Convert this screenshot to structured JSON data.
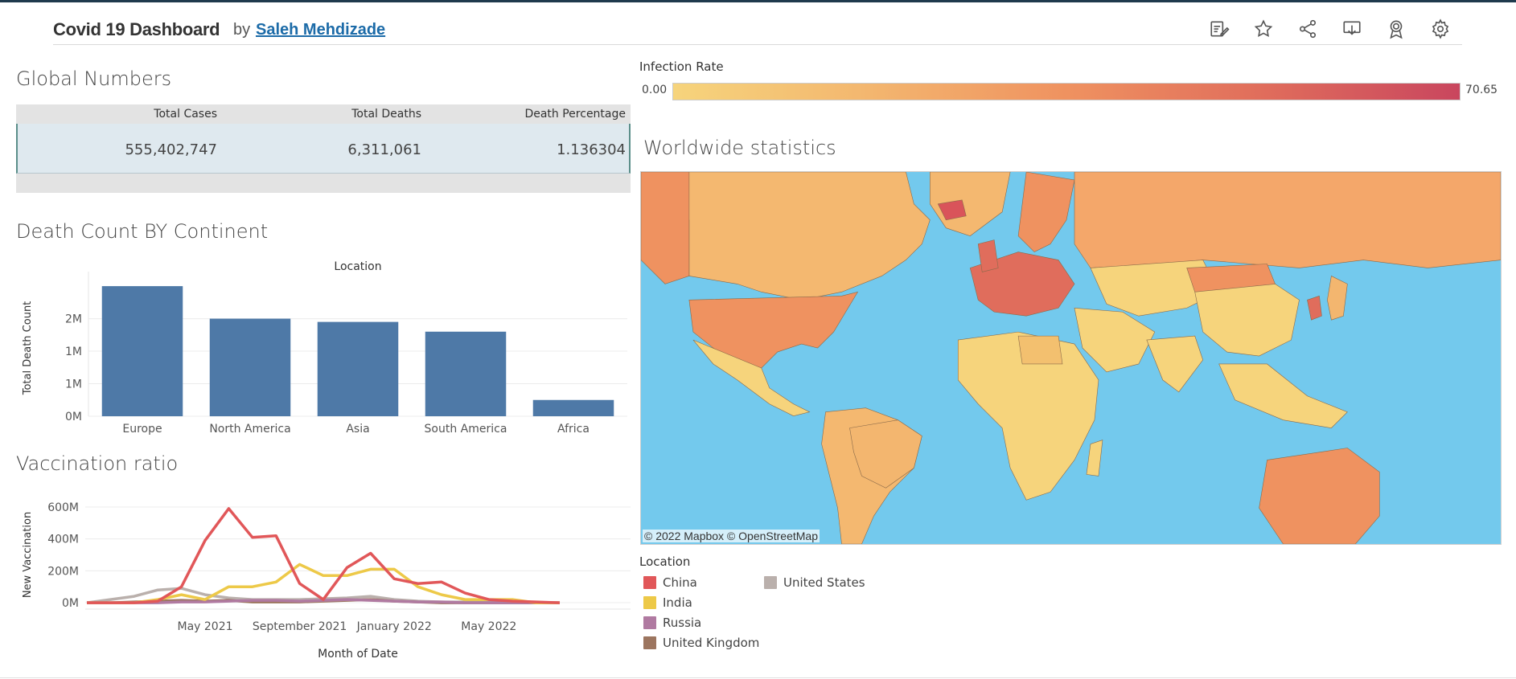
{
  "header": {
    "title": "Covid 19 Dashboard",
    "by": "by",
    "author": "Saleh Mehdizade",
    "toolbar": [
      {
        "icon": "edit-icon"
      },
      {
        "icon": "star-icon"
      },
      {
        "icon": "share-icon"
      },
      {
        "icon": "download-icon"
      },
      {
        "icon": "award-icon"
      },
      {
        "icon": "gear-icon"
      }
    ]
  },
  "global_numbers": {
    "title": "Global Numbers",
    "columns": [
      "Total Cases",
      "Total Deaths",
      "Death Percentage"
    ],
    "values": [
      "555,402,747",
      "6,311,061",
      "1.136304"
    ]
  },
  "death_count": {
    "title": "Death Count BY Continent",
    "chart_data": {
      "type": "bar",
      "title": "Death Count BY Continent",
      "xlabel": "Location",
      "ylabel": "Total Death Count",
      "categories": [
        "Europe",
        "North America",
        "Asia",
        "South America",
        "Africa"
      ],
      "values": [
        2000000,
        1500000,
        1450000,
        1300000,
        250000
      ],
      "ylim": [
        0,
        2100000
      ],
      "yticks": [
        {
          "v": 0,
          "label": "0M"
        },
        {
          "v": 500000,
          "label": "1M"
        },
        {
          "v": 1000000,
          "label": "1M"
        },
        {
          "v": 1500000,
          "label": "2M"
        }
      ],
      "color": "#4e79a7",
      "grid": true
    }
  },
  "vaccination": {
    "title": "Vaccination ratio",
    "chart_data": {
      "type": "line",
      "title": "Vaccination ratio",
      "xlabel": "Month of Date",
      "ylabel": "New Vaccination",
      "x": [
        "2020-12",
        "2021-01",
        "2021-02",
        "2021-03",
        "2021-04",
        "2021-05",
        "2021-06",
        "2021-07",
        "2021-08",
        "2021-09",
        "2021-10",
        "2021-11",
        "2021-12",
        "2022-01",
        "2022-02",
        "2022-03",
        "2022-04",
        "2022-05",
        "2022-06",
        "2022-07",
        "2022-08"
      ],
      "xticks": [
        "May 2021",
        "September 2021",
        "January 2022",
        "May 2022"
      ],
      "xtick_dates": [
        "2021-05",
        "2021-09",
        "2022-01",
        "2022-05"
      ],
      "yticks": [
        {
          "v": 0,
          "label": "0M"
        },
        {
          "v": 200000000,
          "label": "200M"
        },
        {
          "v": 400000000,
          "label": "400M"
        },
        {
          "v": 600000000,
          "label": "600M"
        }
      ],
      "ylim": [
        -40000000,
        640000000
      ],
      "grid": true,
      "series": [
        {
          "name": "China",
          "color": "#e15759",
          "values": [
            0,
            0,
            0,
            10000000,
            100000000,
            390000000,
            590000000,
            410000000,
            420000000,
            120000000,
            20000000,
            220000000,
            310000000,
            150000000,
            120000000,
            130000000,
            60000000,
            20000000,
            10000000,
            5000000,
            0
          ]
        },
        {
          "name": "India",
          "color": "#edc948",
          "values": [
            0,
            0,
            0,
            20000000,
            50000000,
            20000000,
            100000000,
            100000000,
            130000000,
            240000000,
            170000000,
            170000000,
            210000000,
            210000000,
            100000000,
            50000000,
            20000000,
            20000000,
            20000000,
            0,
            0
          ]
        },
        {
          "name": "Russia",
          "color": "#b07aa1",
          "values": [
            0,
            0,
            0,
            0,
            5000000,
            5000000,
            10000000,
            15000000,
            15000000,
            10000000,
            15000000,
            20000000,
            15000000,
            10000000,
            5000000,
            5000000,
            0,
            0,
            0,
            0,
            0
          ]
        },
        {
          "name": "United Kingdom",
          "color": "#9c755f",
          "values": [
            0,
            0,
            5000000,
            10000000,
            15000000,
            10000000,
            15000000,
            5000000,
            5000000,
            5000000,
            10000000,
            15000000,
            20000000,
            10000000,
            5000000,
            0,
            0,
            0,
            0,
            0,
            0
          ]
        },
        {
          "name": "United States",
          "color": "#bab0ac",
          "values": [
            0,
            20000000,
            40000000,
            80000000,
            90000000,
            50000000,
            30000000,
            20000000,
            20000000,
            20000000,
            25000000,
            30000000,
            40000000,
            20000000,
            10000000,
            5000000,
            5000000,
            5000000,
            5000000,
            0,
            0
          ]
        }
      ]
    }
  },
  "infection_rate": {
    "label": "Infection Rate",
    "min": "0.00",
    "max": "70.65",
    "colors": [
      "#f6d47c",
      "#ef9260",
      "#c9465e"
    ]
  },
  "map": {
    "title": "Worldwide statistics",
    "attribution": "© 2022 Mapbox  © OpenStreetMap",
    "ocean_color": "#73c9ed"
  },
  "location_legend": {
    "title": "Location",
    "items": [
      {
        "label": "China",
        "color": "#e15759"
      },
      {
        "label": "India",
        "color": "#edc948"
      },
      {
        "label": "Russia",
        "color": "#b07aa1"
      },
      {
        "label": "United Kingdom",
        "color": "#9c755f"
      },
      {
        "label": "United States",
        "color": "#bab0ac"
      }
    ]
  }
}
